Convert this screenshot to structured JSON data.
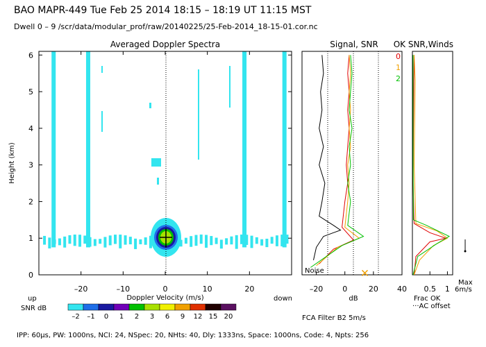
{
  "header": {
    "line1": "BAO  MAPR-449  Tue Feb 25 2014 18:15 – 18:19 UT 11:15 MST",
    "line2": "Dwell  0 –  9   /scr/data/modular_prof/raw/20140225/25-Feb-2014_18-15-01.cor.nc"
  },
  "footer": "IPP: 60µs,  PW: 1000ns,  NCI: 24,  NSpec: 20,  NHts: 40,  Dly: 1333ns,  Space: 1000ns,  Code: 4,  Npts: 256",
  "fca_label": "FCA Filter B2  5m/s",
  "colors": {
    "cyan": "#33e5ef",
    "axis": "#000000",
    "zero_line": "#000000"
  },
  "chart_data": [
    {
      "type": "heatmap",
      "title": "Averaged Doppler Spectra",
      "xlabel": "Doppler Velocity (m/s)",
      "ylabel": "Height (km)",
      "xlim": [
        -30,
        30
      ],
      "ylim": [
        0,
        6.1
      ],
      "xticks": [
        "–20",
        "–10",
        "0",
        "10",
        "20"
      ],
      "xtick_values": [
        -20,
        -10,
        0,
        10,
        20
      ],
      "yticks": [
        "0",
        "1",
        "2",
        "3",
        "4",
        "5",
        "6"
      ],
      "ytick_values": [
        0,
        1,
        2,
        3,
        4,
        5,
        6
      ],
      "left_label": "up",
      "right_label": "down",
      "cyan_columns": [
        {
          "x": -26.5,
          "h0": 0.75,
          "h1": 6.1
        },
        {
          "x": -18.3,
          "h0": 0.75,
          "h1": 6.1
        },
        {
          "x": 18.8,
          "h0": 0.75,
          "h1": 6.1
        },
        {
          "x": 28.3,
          "h0": 0.75,
          "h1": 6.1
        }
      ],
      "echo_core": {
        "x": 0,
        "h": 1.05,
        "peak_snr_db": 3
      },
      "colorbar": {
        "title": "SNR dB",
        "labels": [
          "–2",
          "–1",
          "0",
          "1",
          "2",
          "3",
          "6",
          "9",
          "12",
          "15",
          "20"
        ],
        "colors": [
          "#33e5ef",
          "#1e6ee8",
          "#1919a0",
          "#7000b8",
          "#00c000",
          "#a8e000",
          "#f0f000",
          "#f0a000",
          "#e03000",
          "#200000",
          "#5a1060"
        ]
      }
    },
    {
      "type": "line",
      "title": "Signal, SNR",
      "xlabel": "dB",
      "xlim": [
        -30,
        40
      ],
      "ylim": [
        0,
        6.1
      ],
      "xticks": [
        "–20",
        "0",
        "20",
        "40"
      ],
      "xtick_values": [
        -20,
        0,
        20,
        40
      ],
      "noise_label": "Noise",
      "series": [
        {
          "name": "signal",
          "color": "#000000",
          "points": [
            [
              -22,
              0.4
            ],
            [
              -20,
              0.75
            ],
            [
              -15,
              1.05
            ],
            [
              -8,
              1.15
            ],
            [
              -3,
              1.22
            ],
            [
              -8,
              1.35
            ],
            [
              -18,
              1.6
            ],
            [
              -16,
              2.0
            ],
            [
              -14,
              2.5
            ],
            [
              -18,
              3.0
            ],
            [
              -15,
              3.5
            ],
            [
              -18,
              4.0
            ],
            [
              -16,
              4.5
            ],
            [
              -17,
              5.0
            ],
            [
              -15,
              5.5
            ],
            [
              -16,
              6.0
            ]
          ]
        },
        {
          "name": "snr0",
          "color": "#e00000",
          "points": [
            [
              -18,
              0.3
            ],
            [
              -8,
              0.7
            ],
            [
              6,
              0.95
            ],
            [
              -2,
              1.3
            ],
            [
              0,
              2.0
            ],
            [
              2,
              2.5
            ],
            [
              1,
              3.0
            ],
            [
              2,
              3.5
            ],
            [
              3,
              4.0
            ],
            [
              2,
              4.5
            ],
            [
              3,
              5.0
            ],
            [
              2,
              5.5
            ],
            [
              3,
              6.0
            ]
          ]
        },
        {
          "name": "snr1",
          "color": "#f0a000",
          "points": [
            [
              -20,
              0.25
            ],
            [
              -5,
              0.75
            ],
            [
              10,
              1.0
            ],
            [
              0,
              1.3
            ],
            [
              2,
              2.0
            ],
            [
              3,
              2.5
            ],
            [
              2,
              3.0
            ],
            [
              4,
              3.5
            ],
            [
              3,
              4.0
            ],
            [
              4,
              4.5
            ],
            [
              3,
              5.0
            ],
            [
              4,
              5.5
            ],
            [
              3,
              6.0
            ]
          ]
        },
        {
          "name": "snr2",
          "color": "#00c000",
          "points": [
            [
              -24,
              0.2
            ],
            [
              -2,
              0.8
            ],
            [
              13,
              1.05
            ],
            [
              2,
              1.35
            ],
            [
              4,
              2.0
            ],
            [
              2,
              2.5
            ],
            [
              4,
              3.0
            ],
            [
              3,
              3.5
            ],
            [
              5,
              4.0
            ],
            [
              3,
              4.5
            ],
            [
              4,
              5.0
            ],
            [
              5,
              5.5
            ],
            [
              4,
              6.0
            ]
          ]
        }
      ],
      "markers": [
        {
          "x": 14,
          "h": 0.05,
          "symbol": "x"
        }
      ]
    },
    {
      "type": "line",
      "title": "OK SNR,Winds",
      "xlabel": "Frac OK",
      "xlim": [
        0,
        1.15
      ],
      "ylim": [
        0,
        6.1
      ],
      "xticks": [
        "0.5",
        "1"
      ],
      "xtick_values": [
        0.5,
        1
      ],
      "legend": [
        "0",
        "1",
        "2"
      ],
      "ac_offset_label": "AC offset",
      "max_label": "Max",
      "max_value": "6m/s",
      "series": [
        {
          "name": "0",
          "color": "#e00000",
          "points": [
            [
              0.05,
              0.0
            ],
            [
              0.1,
              0.5
            ],
            [
              0.5,
              0.9
            ],
            [
              0.95,
              1.0
            ],
            [
              0.5,
              1.15
            ],
            [
              0.05,
              1.4
            ],
            [
              0.02,
              2.5
            ],
            [
              0.03,
              4.0
            ],
            [
              0.05,
              6.0
            ]
          ]
        },
        {
          "name": "1",
          "color": "#f0a000",
          "points": [
            [
              0.05,
              0.0
            ],
            [
              0.2,
              0.4
            ],
            [
              0.6,
              0.8
            ],
            [
              1.0,
              1.0
            ],
            [
              0.7,
              1.2
            ],
            [
              0.1,
              1.4
            ],
            [
              0.05,
              3.0
            ],
            [
              0.08,
              5.3
            ],
            [
              0.05,
              6.0
            ]
          ]
        },
        {
          "name": "2",
          "color": "#00c000",
          "points": [
            [
              0.02,
              0.0
            ],
            [
              0.15,
              0.5
            ],
            [
              0.7,
              0.85
            ],
            [
              1.05,
              1.05
            ],
            [
              0.4,
              1.35
            ],
            [
              0.03,
              1.5
            ],
            [
              0.02,
              3.0
            ],
            [
              0.02,
              6.0
            ]
          ]
        }
      ]
    }
  ]
}
